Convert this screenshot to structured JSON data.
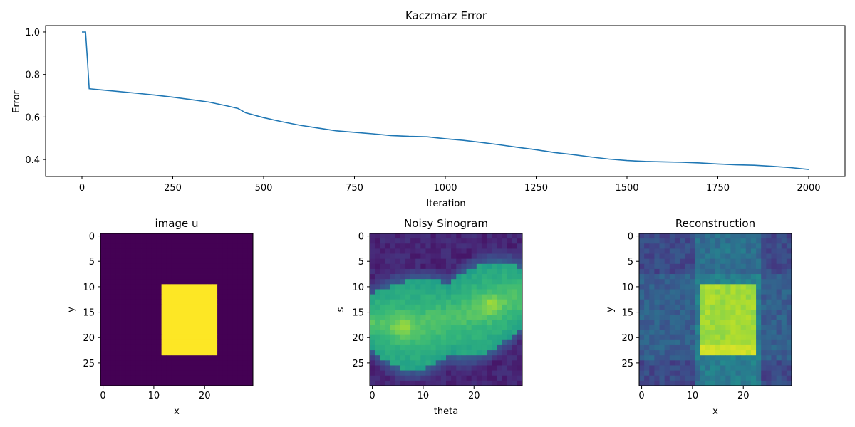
{
  "chart_data": [
    {
      "type": "line",
      "title": "Kaczmarz Error",
      "xlabel": "Iteration",
      "ylabel": "Error",
      "xlim": [
        -100,
        2100
      ],
      "ylim": [
        0.32,
        1.03
      ],
      "xticks": [
        0,
        250,
        500,
        750,
        1000,
        1250,
        1500,
        1750,
        2000
      ],
      "xtick_labels": [
        "0",
        "250",
        "500",
        "750",
        "1000",
        "1250",
        "1500",
        "1750",
        "2000"
      ],
      "yticks": [
        0.4,
        0.6,
        0.8,
        1.0
      ],
      "ytick_labels": [
        "0.4",
        "0.6",
        "0.8",
        "1.0"
      ],
      "color": "#1f77b4",
      "series": [
        {
          "x": [
            0,
            10,
            15,
            20,
            50,
            100,
            150,
            200,
            250,
            300,
            350,
            400,
            430,
            440,
            450,
            500,
            550,
            600,
            650,
            700,
            750,
            800,
            850,
            900,
            950,
            1000,
            1050,
            1100,
            1150,
            1200,
            1250,
            1300,
            1350,
            1400,
            1450,
            1500,
            1550,
            1600,
            1650,
            1700,
            1750,
            1800,
            1850,
            1900,
            1950,
            2000
          ],
          "y": [
            1.0,
            1.0,
            0.87,
            0.733,
            0.728,
            0.72,
            0.712,
            0.703,
            0.693,
            0.682,
            0.67,
            0.652,
            0.64,
            0.63,
            0.62,
            0.597,
            0.578,
            0.561,
            0.548,
            0.535,
            0.528,
            0.521,
            0.513,
            0.509,
            0.507,
            0.498,
            0.49,
            0.48,
            0.469,
            0.457,
            0.446,
            0.433,
            0.423,
            0.412,
            0.402,
            0.395,
            0.391,
            0.389,
            0.387,
            0.384,
            0.379,
            0.375,
            0.373,
            0.368,
            0.362,
            0.353
          ]
        }
      ],
      "grid": false
    },
    {
      "type": "heatmap",
      "title": "image u",
      "xlabel": "x",
      "ylabel": "y",
      "xticks": [
        0,
        10,
        20
      ],
      "xtick_labels": [
        "0",
        "10",
        "20"
      ],
      "yticks": [
        0,
        5,
        10,
        15,
        20,
        25
      ],
      "ytick_labels": [
        "0",
        "5",
        "10",
        "15",
        "20",
        "25"
      ],
      "size": [
        30,
        30
      ],
      "colormap": "viridis",
      "range": [
        0,
        1
      ],
      "background": 0.0,
      "rect": {
        "rows": [
          10,
          23
        ],
        "cols": [
          12,
          22
        ],
        "value": 1.0
      }
    },
    {
      "type": "heatmap",
      "title": "Noisy Sinogram",
      "xlabel": "theta",
      "ylabel": "s",
      "xticks": [
        0,
        10,
        20
      ],
      "xtick_labels": [
        "0",
        "10",
        "20"
      ],
      "yticks": [
        0,
        5,
        10,
        15,
        20,
        25
      ],
      "ytick_labels": [
        "0",
        "5",
        "10",
        "15",
        "20",
        "25"
      ],
      "size": [
        30,
        30
      ],
      "colormap": "viridis",
      "range": [
        0,
        1
      ]
    },
    {
      "type": "heatmap",
      "title": "Reconstruction",
      "xlabel": "x",
      "ylabel": "y",
      "xticks": [
        0,
        10,
        20
      ],
      "xtick_labels": [
        "0",
        "10",
        "20"
      ],
      "yticks": [
        0,
        5,
        10,
        15,
        20,
        25
      ],
      "ytick_labels": [
        "0",
        "5",
        "10",
        "15",
        "20",
        "25"
      ],
      "size": [
        30,
        30
      ],
      "colormap": "viridis",
      "range": [
        0,
        1
      ],
      "rect": {
        "rows": [
          10,
          23
        ],
        "cols": [
          12,
          22
        ],
        "value": 0.86
      }
    }
  ]
}
